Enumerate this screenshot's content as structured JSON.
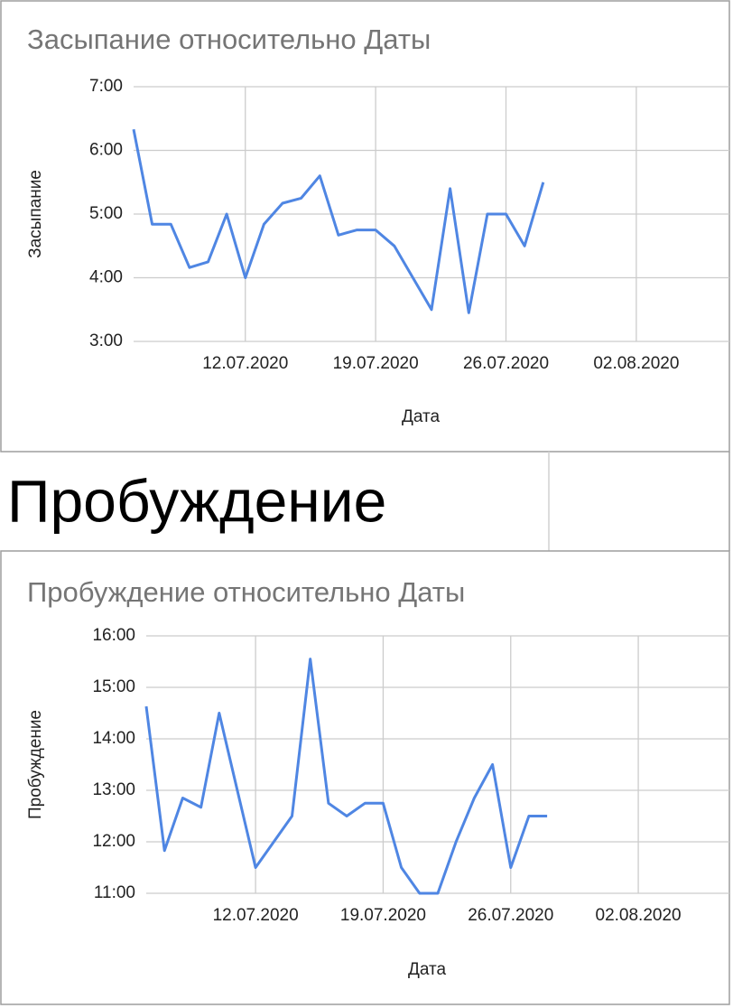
{
  "heading": "Пробуждение",
  "chart_data": [
    {
      "type": "line",
      "title": "Засыпание относительно Даты",
      "xlabel": "Дата",
      "ylabel": "Засыпание",
      "color": "#4f86e3",
      "grid": true,
      "x": [
        "06.07.2020",
        "07.07.2020",
        "08.07.2020",
        "09.07.2020",
        "10.07.2020",
        "11.07.2020",
        "12.07.2020",
        "13.07.2020",
        "14.07.2020",
        "15.07.2020",
        "16.07.2020",
        "17.07.2020",
        "18.07.2020",
        "19.07.2020",
        "20.07.2020",
        "21.07.2020",
        "22.07.2020",
        "23.07.2020",
        "24.07.2020",
        "25.07.2020",
        "26.07.2020",
        "27.07.2020",
        "28.07.2020"
      ],
      "values": [
        6.33,
        4.84,
        4.84,
        4.16,
        4.25,
        5.0,
        4.0,
        4.84,
        5.17,
        5.25,
        5.6,
        4.67,
        4.75,
        4.75,
        4.5,
        4.0,
        3.5,
        5.4,
        3.45,
        5.0,
        5.0,
        4.5,
        5.5
      ],
      "xlim": [
        "06.07.2020",
        "07.08.2020"
      ],
      "xticks": [
        "12.07.2020",
        "19.07.2020",
        "26.07.2020",
        "02.08.2020"
      ],
      "ylim": [
        3,
        7
      ],
      "yticks": [
        {
          "value": 3,
          "label": "3:00"
        },
        {
          "value": 4,
          "label": "4:00"
        },
        {
          "value": 5,
          "label": "5:00"
        },
        {
          "value": 6,
          "label": "6:00"
        },
        {
          "value": 7,
          "label": "7:00"
        }
      ]
    },
    {
      "type": "line",
      "title": "Пробуждение относительно Даты",
      "xlabel": "Дата",
      "ylabel": "Пробуждение",
      "color": "#4f86e3",
      "grid": true,
      "x": [
        "06.07.2020",
        "07.07.2020",
        "08.07.2020",
        "09.07.2020",
        "10.07.2020",
        "11.07.2020",
        "12.07.2020",
        "13.07.2020",
        "14.07.2020",
        "15.07.2020",
        "16.07.2020",
        "17.07.2020",
        "18.07.2020",
        "19.07.2020",
        "20.07.2020",
        "21.07.2020",
        "22.07.2020",
        "23.07.2020",
        "24.07.2020",
        "25.07.2020",
        "26.07.2020",
        "27.07.2020",
        "28.07.2020"
      ],
      "values": [
        14.63,
        11.83,
        12.85,
        12.67,
        14.5,
        13.0,
        11.5,
        12.0,
        12.5,
        15.55,
        12.75,
        12.5,
        12.75,
        12.75,
        11.5,
        11.0,
        11.0,
        12.0,
        12.85,
        13.5,
        11.5,
        12.5,
        12.5
      ],
      "xlim": [
        "06.07.2020",
        "07.08.2020"
      ],
      "xticks": [
        "12.07.2020",
        "19.07.2020",
        "26.07.2020",
        "02.08.2020"
      ],
      "ylim": [
        11,
        16
      ],
      "yticks": [
        {
          "value": 11,
          "label": "11:00"
        },
        {
          "value": 12,
          "label": "12:00"
        },
        {
          "value": 13,
          "label": "13:00"
        },
        {
          "value": 14,
          "label": "14:00"
        },
        {
          "value": 15,
          "label": "15:00"
        },
        {
          "value": 16,
          "label": "16:00"
        }
      ]
    }
  ]
}
